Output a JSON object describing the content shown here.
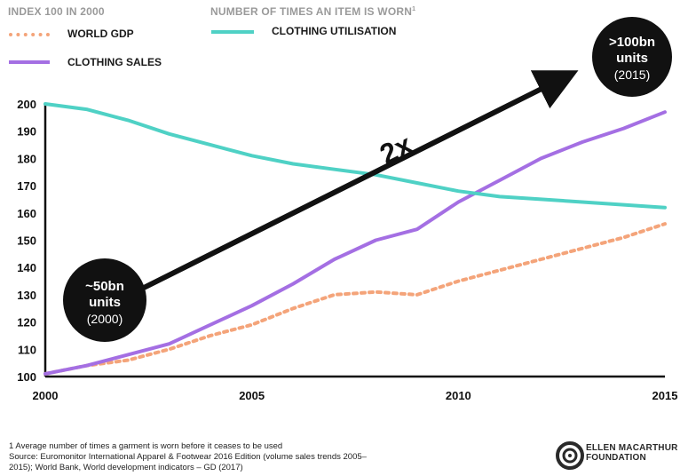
{
  "legend": {
    "left_title": "INDEX 100 IN 2000",
    "right_title": "NUMBER OF TIMES AN ITEM IS WORN",
    "right_title_sup": "1",
    "world_gdp": "WORLD GDP",
    "clothing_sales": "CLOTHING SALES",
    "clothing_utilisation": "CLOTHING UTILISATION"
  },
  "annotations": {
    "start_bubble": [
      "~50bn",
      "units",
      "(2000)"
    ],
    "end_bubble": [
      ">100bn",
      "units",
      "(2015)"
    ],
    "arrow_label": "2x"
  },
  "footnote": {
    "line1": "1 Average number of times a garment is worn before it ceases to be used",
    "line2": "Source: Euromonitor International Apparel & Footwear 2016 Edition (volume sales trends 2005–2015); World Bank, World development indicators – GD (2017)"
  },
  "logo": {
    "line1": "ELLEN MACARTHUR",
    "line2": "FOUNDATION"
  },
  "colors": {
    "world_gdp": "#f4a47a",
    "clothing_sales": "#a46fe3",
    "clothing_utilisation": "#4fd1c5",
    "axis": "#111111",
    "arrow": "#111111"
  },
  "chart_data": {
    "type": "line",
    "xlim": [
      2000,
      2015
    ],
    "ylim": [
      100,
      200
    ],
    "x_ticks": [
      2000,
      2005,
      2010,
      2015
    ],
    "y_ticks": [
      100,
      110,
      120,
      130,
      140,
      150,
      160,
      170,
      180,
      190,
      200
    ],
    "grid": false,
    "legend_placement": "top-left",
    "series": [
      {
        "name": "WORLD GDP",
        "style": "dotted",
        "x": [
          2000,
          2001,
          2002,
          2003,
          2004,
          2005,
          2006,
          2007,
          2008,
          2009,
          2010,
          2011,
          2012,
          2013,
          2014,
          2015
        ],
        "y": [
          101,
          104,
          106,
          110,
          115,
          119,
          125,
          130,
          131,
          130,
          135,
          139,
          143,
          147,
          151,
          156
        ]
      },
      {
        "name": "CLOTHING SALES",
        "style": "solid",
        "x": [
          2000,
          2001,
          2002,
          2003,
          2004,
          2005,
          2006,
          2007,
          2008,
          2009,
          2010,
          2011,
          2012,
          2013,
          2014,
          2015
        ],
        "y": [
          101,
          104,
          108,
          112,
          119,
          126,
          134,
          143,
          150,
          154,
          164,
          172,
          180,
          186,
          191,
          197
        ]
      },
      {
        "name": "CLOTHING UTILISATION",
        "style": "solid",
        "x": [
          2000,
          2001,
          2002,
          2003,
          2004,
          2005,
          2006,
          2007,
          2008,
          2009,
          2010,
          2011,
          2012,
          2013,
          2014,
          2015
        ],
        "y": [
          200,
          198,
          194,
          189,
          185,
          181,
          178,
          176,
          174,
          171,
          168,
          166,
          165,
          164,
          163,
          162
        ]
      }
    ]
  }
}
